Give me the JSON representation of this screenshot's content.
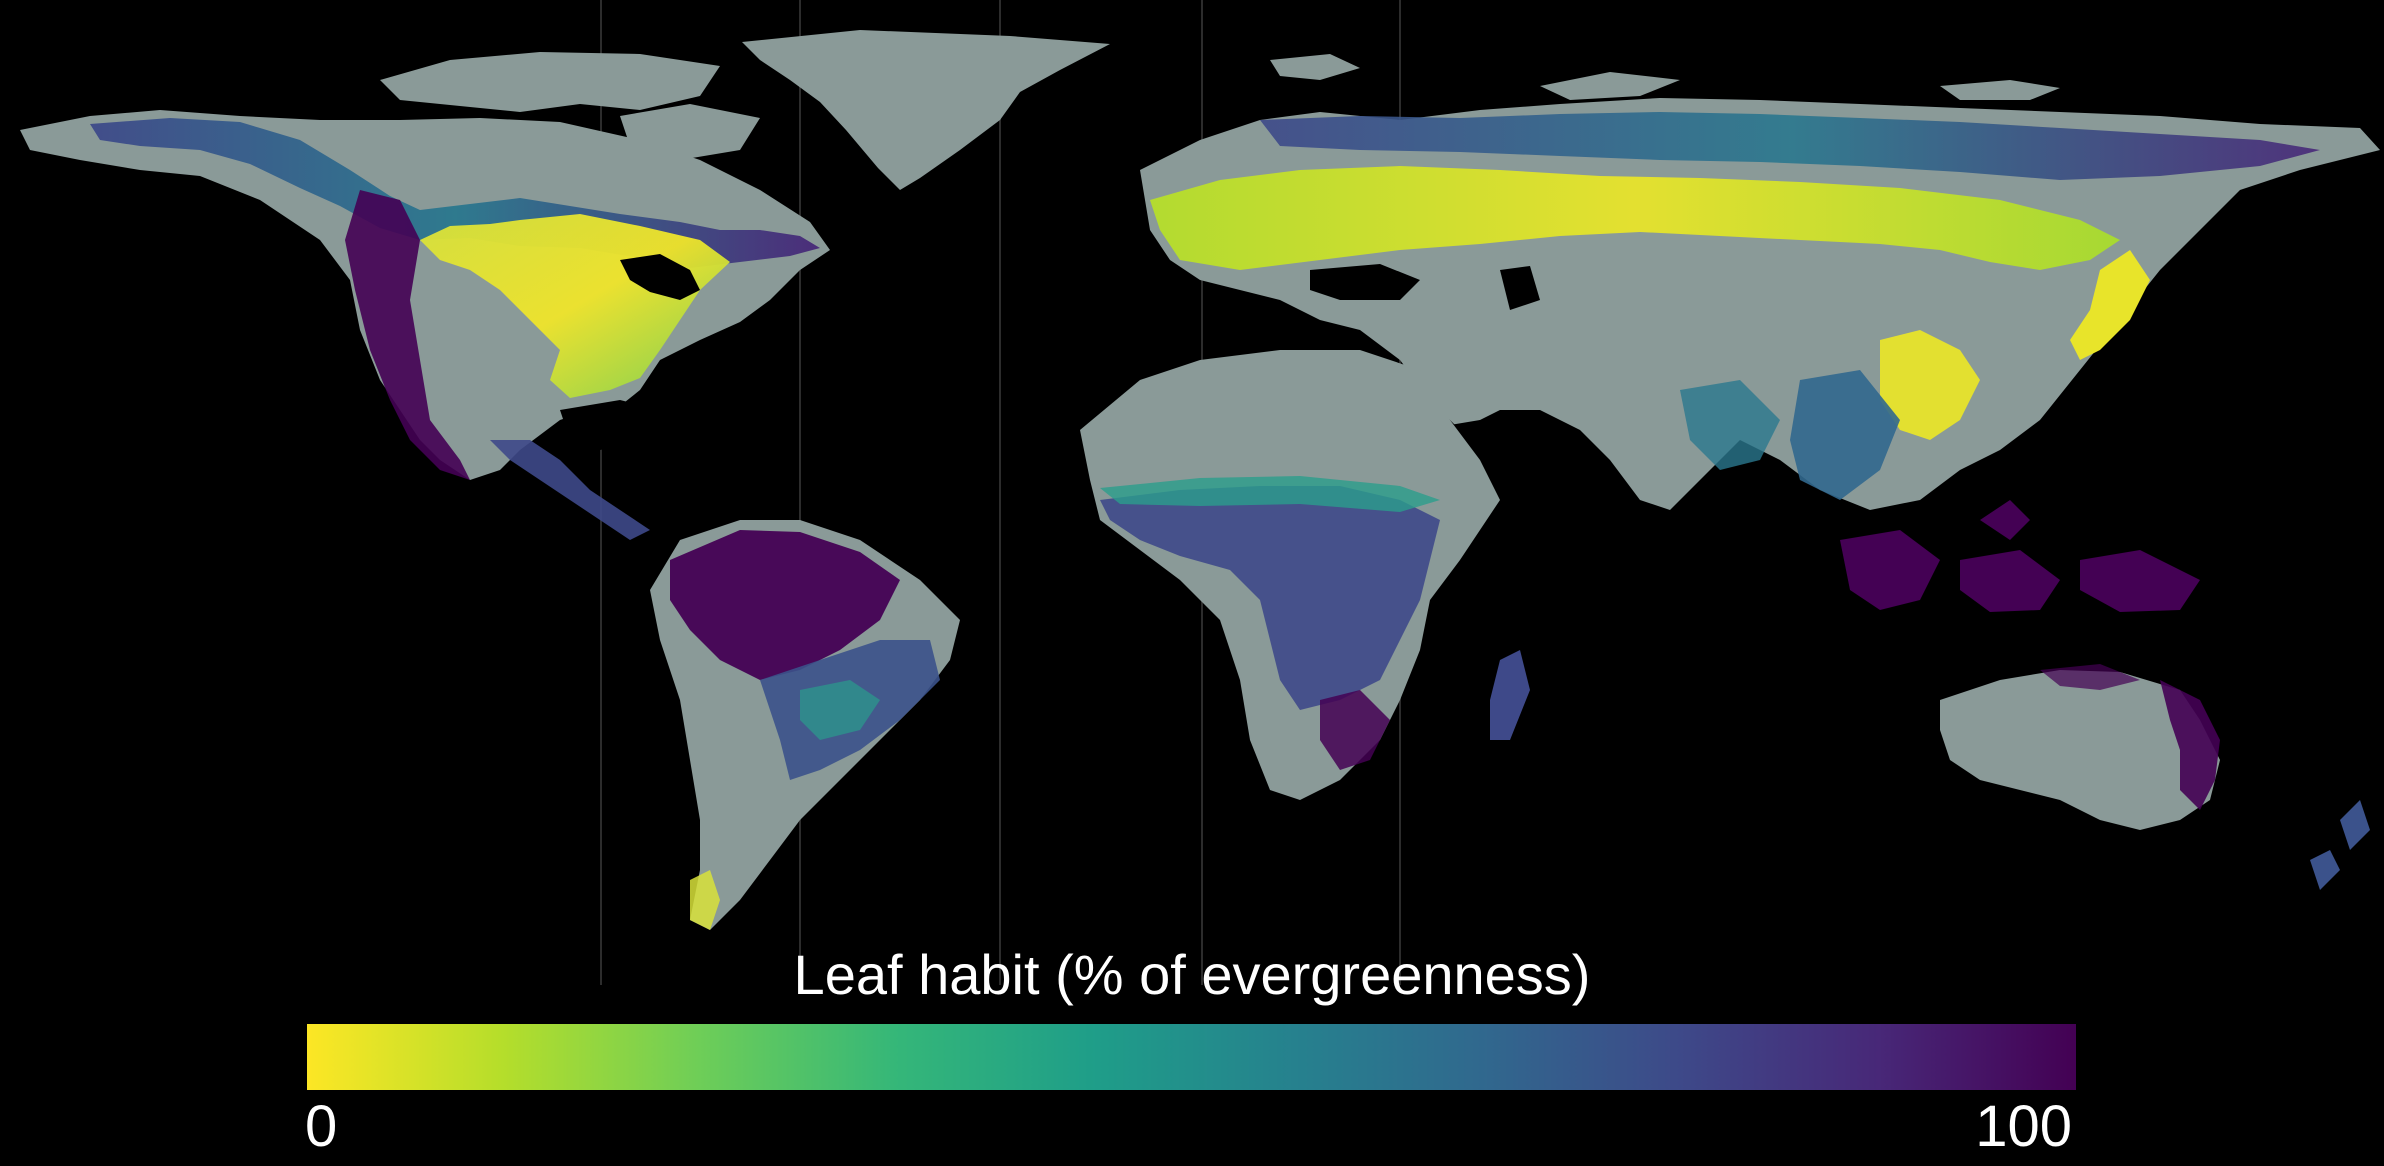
{
  "legend": {
    "title": "Leaf habit (% of evergreenness)",
    "min_label": "0",
    "max_label": "100",
    "scale_min": 0,
    "scale_max": 100,
    "gradient_colors": [
      "#fde725",
      "#b5de2b",
      "#6ece58",
      "#35b779",
      "#1f9e89",
      "#26828e",
      "#31688e",
      "#3e4989",
      "#482878",
      "#440154"
    ]
  },
  "map": {
    "projection": "equirectangular",
    "background_color": "#000000",
    "unvegetated_color": "#8a9a98",
    "regions": [
      {
        "name": "North America",
        "habit": "mixed: deciduous east, evergreen boreal and west"
      },
      {
        "name": "South America",
        "habit": "mostly evergreen tropical"
      },
      {
        "name": "Africa",
        "habit": "evergreen central, non-vegetated north"
      },
      {
        "name": "Europe",
        "habit": "mostly deciduous"
      },
      {
        "name": "Asia",
        "habit": "mixed: deciduous Siberia band, evergreen tropics"
      },
      {
        "name": "Australia",
        "habit": "mostly non-vegetated, evergreen coasts"
      }
    ]
  }
}
